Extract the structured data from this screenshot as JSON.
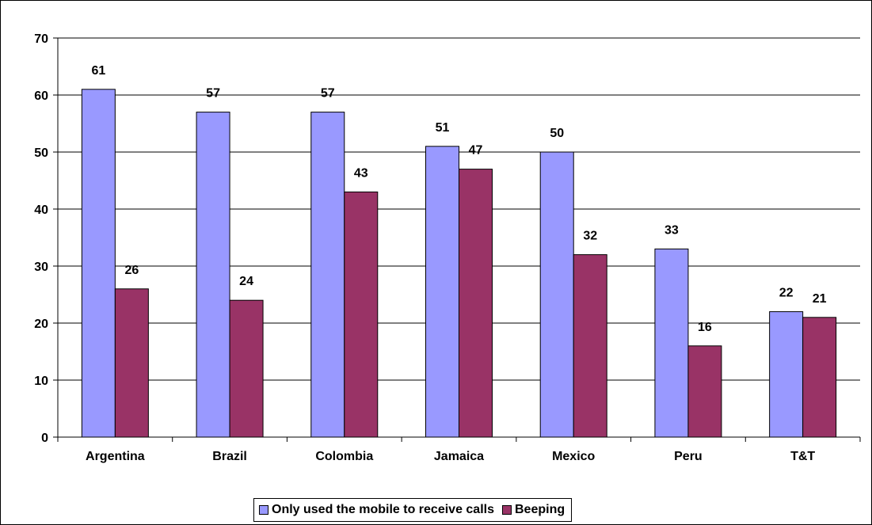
{
  "chart_data": {
    "type": "bar",
    "categories": [
      "Argentina",
      "Brazil",
      "Colombia",
      "Jamaica",
      "Mexico",
      "Peru",
      "T&T"
    ],
    "series": [
      {
        "name": "Only used the mobile to receive calls",
        "values": [
          61,
          57,
          57,
          51,
          50,
          33,
          22
        ],
        "color": "#9999ff"
      },
      {
        "name": "Beeping",
        "values": [
          26,
          24,
          43,
          47,
          32,
          16,
          21
        ],
        "color": "#993366"
      }
    ],
    "title": "",
    "xlabel": "",
    "ylabel": "",
    "ylim": [
      0,
      70
    ],
    "yticks": [
      0,
      10,
      20,
      30,
      40,
      50,
      60,
      70
    ],
    "grid": true,
    "legend_position": "bottom"
  }
}
